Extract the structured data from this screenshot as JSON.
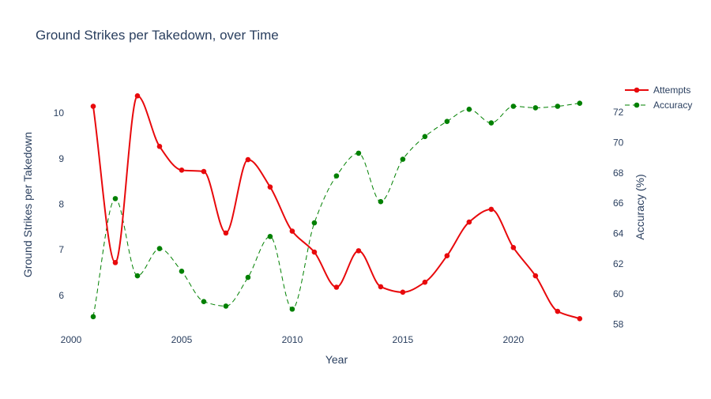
{
  "chart_data": {
    "type": "line",
    "title": "Ground Strikes per Takedown, over Time",
    "xlabel": "Year",
    "ylabel": "Ground Strikes per Takedown",
    "y2label": "Accuracy (%)",
    "x": [
      2001,
      2002,
      2003,
      2004,
      2005,
      2006,
      2007,
      2008,
      2009,
      2010,
      2011,
      2012,
      2013,
      2014,
      2015,
      2016,
      2017,
      2018,
      2019,
      2020,
      2021,
      2022,
      2023
    ],
    "xlim": [
      2000,
      2024.4
    ],
    "ylim": [
      5.2,
      10.75
    ],
    "y2lim": [
      57.5,
      74.2
    ],
    "xticks": [
      2000,
      2005,
      2010,
      2015,
      2020
    ],
    "yticks": [
      6,
      7,
      8,
      9,
      10
    ],
    "y2ticks": [
      58,
      60,
      62,
      64,
      66,
      68,
      70,
      72
    ],
    "grid": false,
    "legend_position": "top-right",
    "series": [
      {
        "name": "Attempts",
        "axis": "y",
        "color": "#e8090c",
        "line_style": "solid",
        "values": [
          10.15,
          6.72,
          10.38,
          9.27,
          8.75,
          8.72,
          7.37,
          8.98,
          8.38,
          7.41,
          6.95,
          6.18,
          6.98,
          6.19,
          6.07,
          6.29,
          6.87,
          7.61,
          7.89,
          7.05,
          6.43,
          5.65,
          5.49
        ]
      },
      {
        "name": "Accuracy",
        "axis": "y2",
        "color": "#008000",
        "line_style": "dashed",
        "values": [
          58.5,
          66.3,
          61.2,
          63.0,
          61.5,
          59.5,
          59.2,
          61.1,
          63.8,
          59.0,
          64.7,
          67.8,
          69.3,
          66.1,
          68.9,
          70.4,
          71.4,
          72.2,
          71.3,
          72.4,
          72.3,
          72.4,
          72.6
        ]
      }
    ]
  }
}
